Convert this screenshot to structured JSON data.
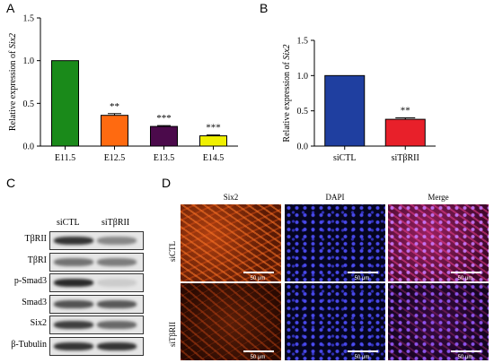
{
  "panels": {
    "a": "A",
    "b": "B",
    "c": "C",
    "d": "D"
  },
  "chart_data": [
    {
      "type": "bar",
      "categories": [
        "E11.5",
        "E12.5",
        "E13.5",
        "E14.5"
      ],
      "values": [
        1.0,
        0.36,
        0.23,
        0.12
      ],
      "errors": [
        0.0,
        0.02,
        0.01,
        0.01
      ],
      "significance": [
        "",
        "**",
        "***",
        "***"
      ],
      "colors": [
        "#1a8a1a",
        "#ff6a10",
        "#4b0a4b",
        "#f0f000"
      ],
      "ylabel_prefix": "Relative expression of ",
      "ylabel_gene": "Six2",
      "yticks": [
        "0.0",
        "0.5",
        "1.0",
        "1.5"
      ],
      "ylim": [
        0,
        1.5
      ]
    },
    {
      "type": "bar",
      "categories": [
        "siCTL",
        "siTβRII"
      ],
      "values": [
        1.0,
        0.38
      ],
      "errors": [
        0.0,
        0.02
      ],
      "significance": [
        "",
        "**"
      ],
      "colors": [
        "#1f3fa0",
        "#e8202a"
      ],
      "ylabel_prefix": "Relative expression of ",
      "ylabel_gene": "Six2",
      "yticks": [
        "0.0",
        "0.5",
        "1.0",
        "1.5"
      ],
      "ylim": [
        0,
        1.5
      ]
    }
  ],
  "blot": {
    "lanes": [
      "siCTL",
      "siTβRII"
    ],
    "rows": [
      {
        "label": "TβRII",
        "left": 0.85,
        "right": 0.45
      },
      {
        "label": "TβRI",
        "left": 0.55,
        "right": 0.5
      },
      {
        "label": "p-Smad3",
        "left": 0.9,
        "right": 0.12
      },
      {
        "label": "Smad3",
        "left": 0.7,
        "right": 0.68
      },
      {
        "label": "Six2",
        "left": 0.8,
        "right": 0.6
      },
      {
        "label": "β-Tubulin",
        "left": 0.85,
        "right": 0.85
      }
    ]
  },
  "microscopy": {
    "columns": [
      "Six2",
      "DAPI",
      "Merge"
    ],
    "rows": [
      "siCTL",
      "siTβRII"
    ],
    "scale_bar": "50 μm"
  }
}
